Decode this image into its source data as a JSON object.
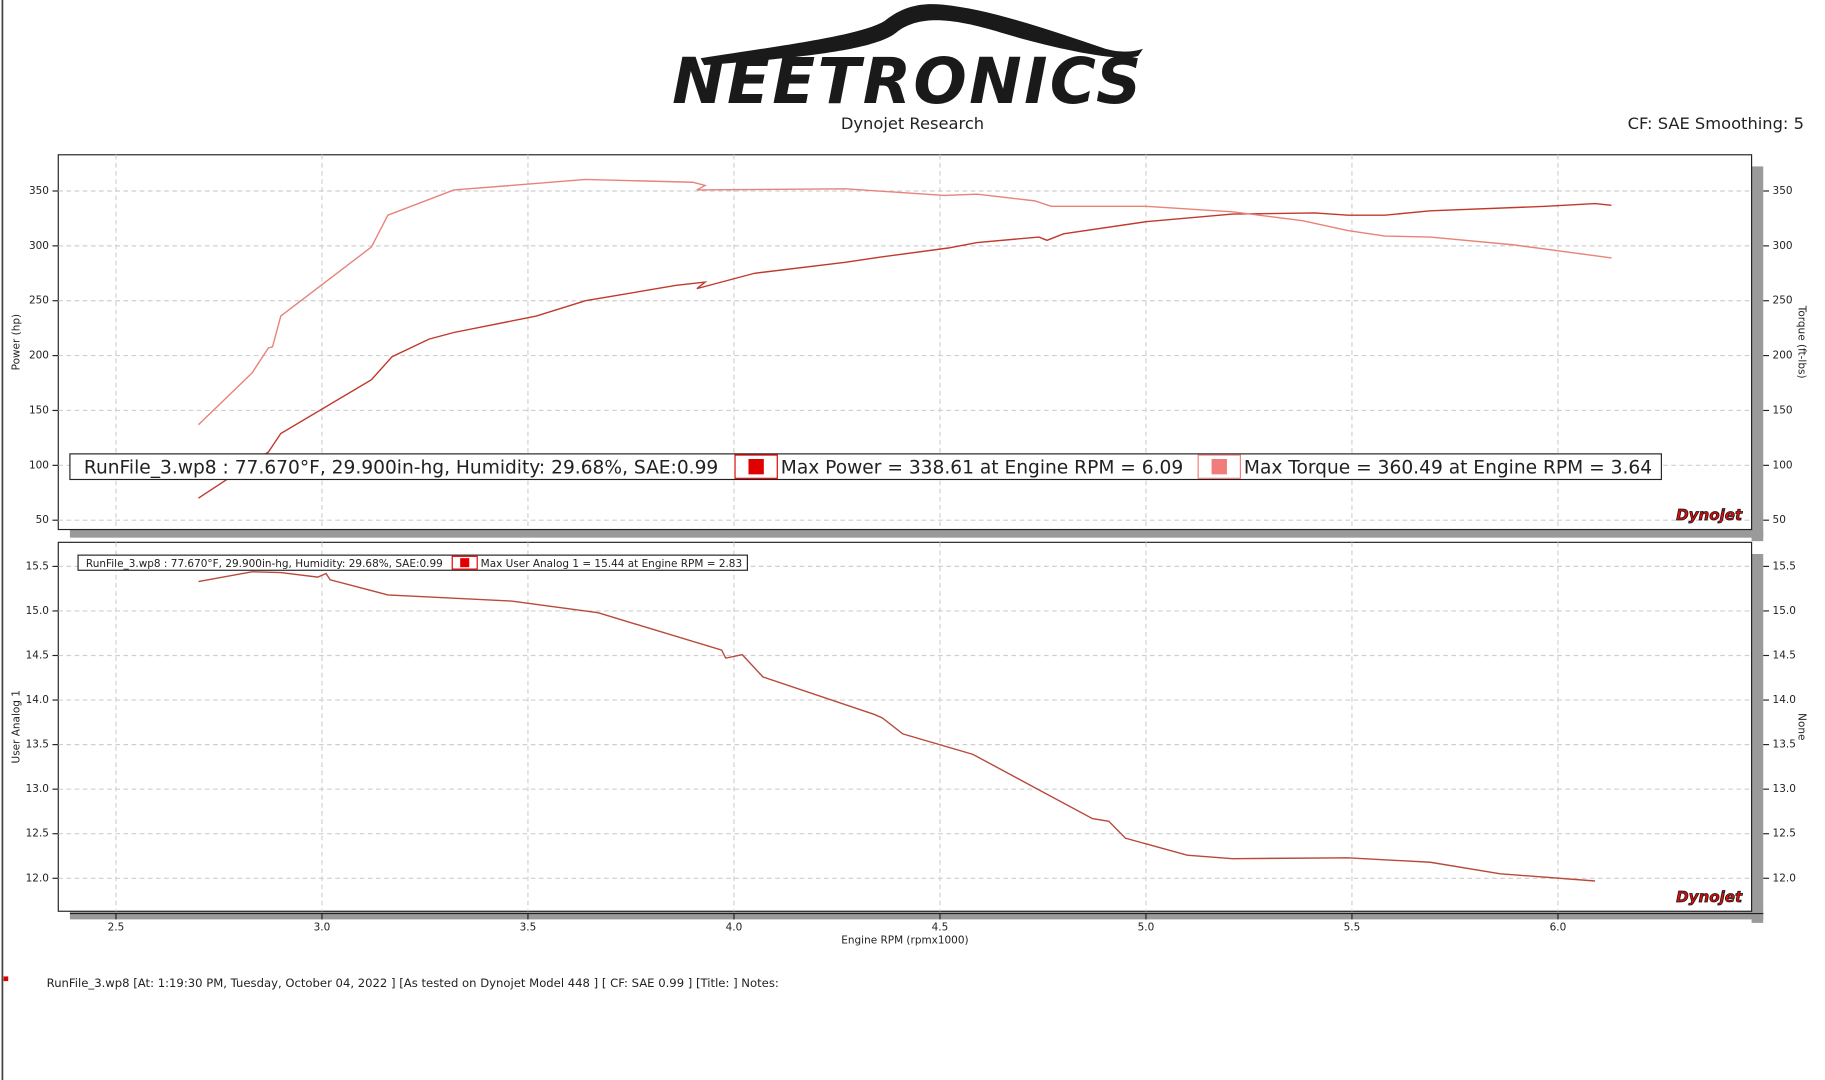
{
  "header": {
    "logo": "NEETRONICS",
    "subtitle": "Dynojet Research",
    "settings": "CF: SAE Smoothing: 5"
  },
  "chart_data": [
    {
      "type": "line",
      "legend_title": "RunFile_3.wp8 : 77.670°F, 29.900in-hg, Humidity: 29.68%, SAE:0.99",
      "ylabel": "Power (hp)",
      "y2label": "Torque (ft-lbs)",
      "watermark": "Dynojet",
      "grid": true,
      "xtick_labels": false,
      "xlim": [
        2.36,
        6.47
      ],
      "xticks": [
        2.5,
        3,
        3.5,
        4,
        4.5,
        5,
        5.5,
        6
      ],
      "ylim": [
        41.5,
        383
      ],
      "yticks": [
        50,
        100,
        150,
        200,
        250,
        300,
        350
      ],
      "y2lim": [
        41.5,
        383
      ],
      "y2ticks": [
        50,
        100,
        150,
        200,
        250,
        300,
        350
      ],
      "series": [
        {
          "name": "Max Power = 338.61 at Engine RPM = 6.09",
          "color": "#c0392b",
          "marker_color": "#e00000",
          "x": [
            2.7,
            2.87,
            2.9,
            3.12,
            3.17,
            3.26,
            3.32,
            3.52,
            3.64,
            3.86,
            3.93,
            3.91,
            4.05,
            4.27,
            4.36,
            4.52,
            4.59,
            4.74,
            4.76,
            4.8,
            5.0,
            5.21,
            5.41,
            5.49,
            5.58,
            5.69,
            5.97,
            6.09,
            6.13
          ],
          "values": [
            70,
            112,
            129,
            178,
            199,
            215,
            221,
            236,
            250,
            264,
            267,
            261,
            275,
            285,
            290,
            298,
            303,
            308,
            305,
            311,
            322,
            329,
            330,
            328,
            328,
            332,
            336,
            338.6,
            337
          ]
        },
        {
          "name": "Max Torque = 360.49 at Engine RPM = 3.64",
          "color": "#e8837a",
          "marker_color": "#f07c7c",
          "axis": "y2",
          "x": [
            2.7,
            2.83,
            2.87,
            2.88,
            2.9,
            3.12,
            3.16,
            3.32,
            3.49,
            3.64,
            3.9,
            3.93,
            3.91,
            4.27,
            4.51,
            4.59,
            4.73,
            4.77,
            4.8,
            5.0,
            5.21,
            5.38,
            5.49,
            5.58,
            5.69,
            5.89,
            6.13
          ],
          "values": [
            137,
            184,
            207,
            208,
            236,
            299,
            328,
            351,
            356,
            360.5,
            358,
            355,
            351,
            352,
            346,
            347,
            341,
            336,
            336,
            336,
            331,
            323,
            314,
            309,
            308,
            301,
            289
          ]
        }
      ]
    },
    {
      "type": "line",
      "legend_title": "RunFile_3.wp8 : 77.670°F, 29.900in-hg, Humidity: 29.68%, SAE:0.99",
      "xlabel": "Engine RPM (rpmx1000)",
      "ylabel": "User Analog 1",
      "y2label": "None",
      "watermark": "Dynojet",
      "grid": true,
      "xtick_labels": true,
      "xlim": [
        2.36,
        6.47
      ],
      "xticks": [
        2.5,
        {
          "value": 3,
          "label": "3.0"
        },
        3.5,
        {
          "value": 4,
          "label": "4.0"
        },
        4.5,
        {
          "value": 5,
          "label": "5.0"
        },
        5.5,
        {
          "value": 6,
          "label": "6.0"
        }
      ],
      "ylim": [
        11.63,
        15.77
      ],
      "yticks": [
        {
          "value": 12,
          "label": "12.0"
        },
        12.5,
        {
          "value": 13,
          "label": "13.0"
        },
        13.5,
        {
          "value": 14,
          "label": "14.0"
        },
        14.5,
        {
          "value": 15,
          "label": "15.0"
        },
        15.5
      ],
      "y2lim": [
        11.63,
        15.77
      ],
      "y2ticks": [
        {
          "value": 12,
          "label": "12.0"
        },
        12.5,
        {
          "value": 13,
          "label": "13.0"
        },
        13.5,
        {
          "value": 14,
          "label": "14.0"
        },
        14.5,
        {
          "value": 15,
          "label": "15.0"
        },
        15.5
      ],
      "series": [
        {
          "name": "Max User Analog 1 = 15.44 at Engine RPM = 2.83",
          "color": "#b84a3c",
          "marker_color": "#e00000",
          "x": [
            2.7,
            2.83,
            2.9,
            2.99,
            3.01,
            3.02,
            3.16,
            3.46,
            3.67,
            3.97,
            3.98,
            4.02,
            4.07,
            4.34,
            4.36,
            4.41,
            4.58,
            4.87,
            4.91,
            4.95,
            5.1,
            5.21,
            5.49,
            5.69,
            5.86,
            6.09
          ],
          "values": [
            15.33,
            15.44,
            15.43,
            15.38,
            15.42,
            15.35,
            15.18,
            15.11,
            14.98,
            14.56,
            14.47,
            14.51,
            14.26,
            13.84,
            13.8,
            13.62,
            13.39,
            12.67,
            12.64,
            12.45,
            12.26,
            12.22,
            12.23,
            12.18,
            12.05,
            11.97
          ]
        }
      ]
    }
  ],
  "footer": "RunFile_3.wp8 [At: 1:19:30 PM, Tuesday, October 04, 2022 ] [As tested on Dynojet Model 448 ] [ CF: SAE 0.99 ] [Title: ]  Notes:"
}
